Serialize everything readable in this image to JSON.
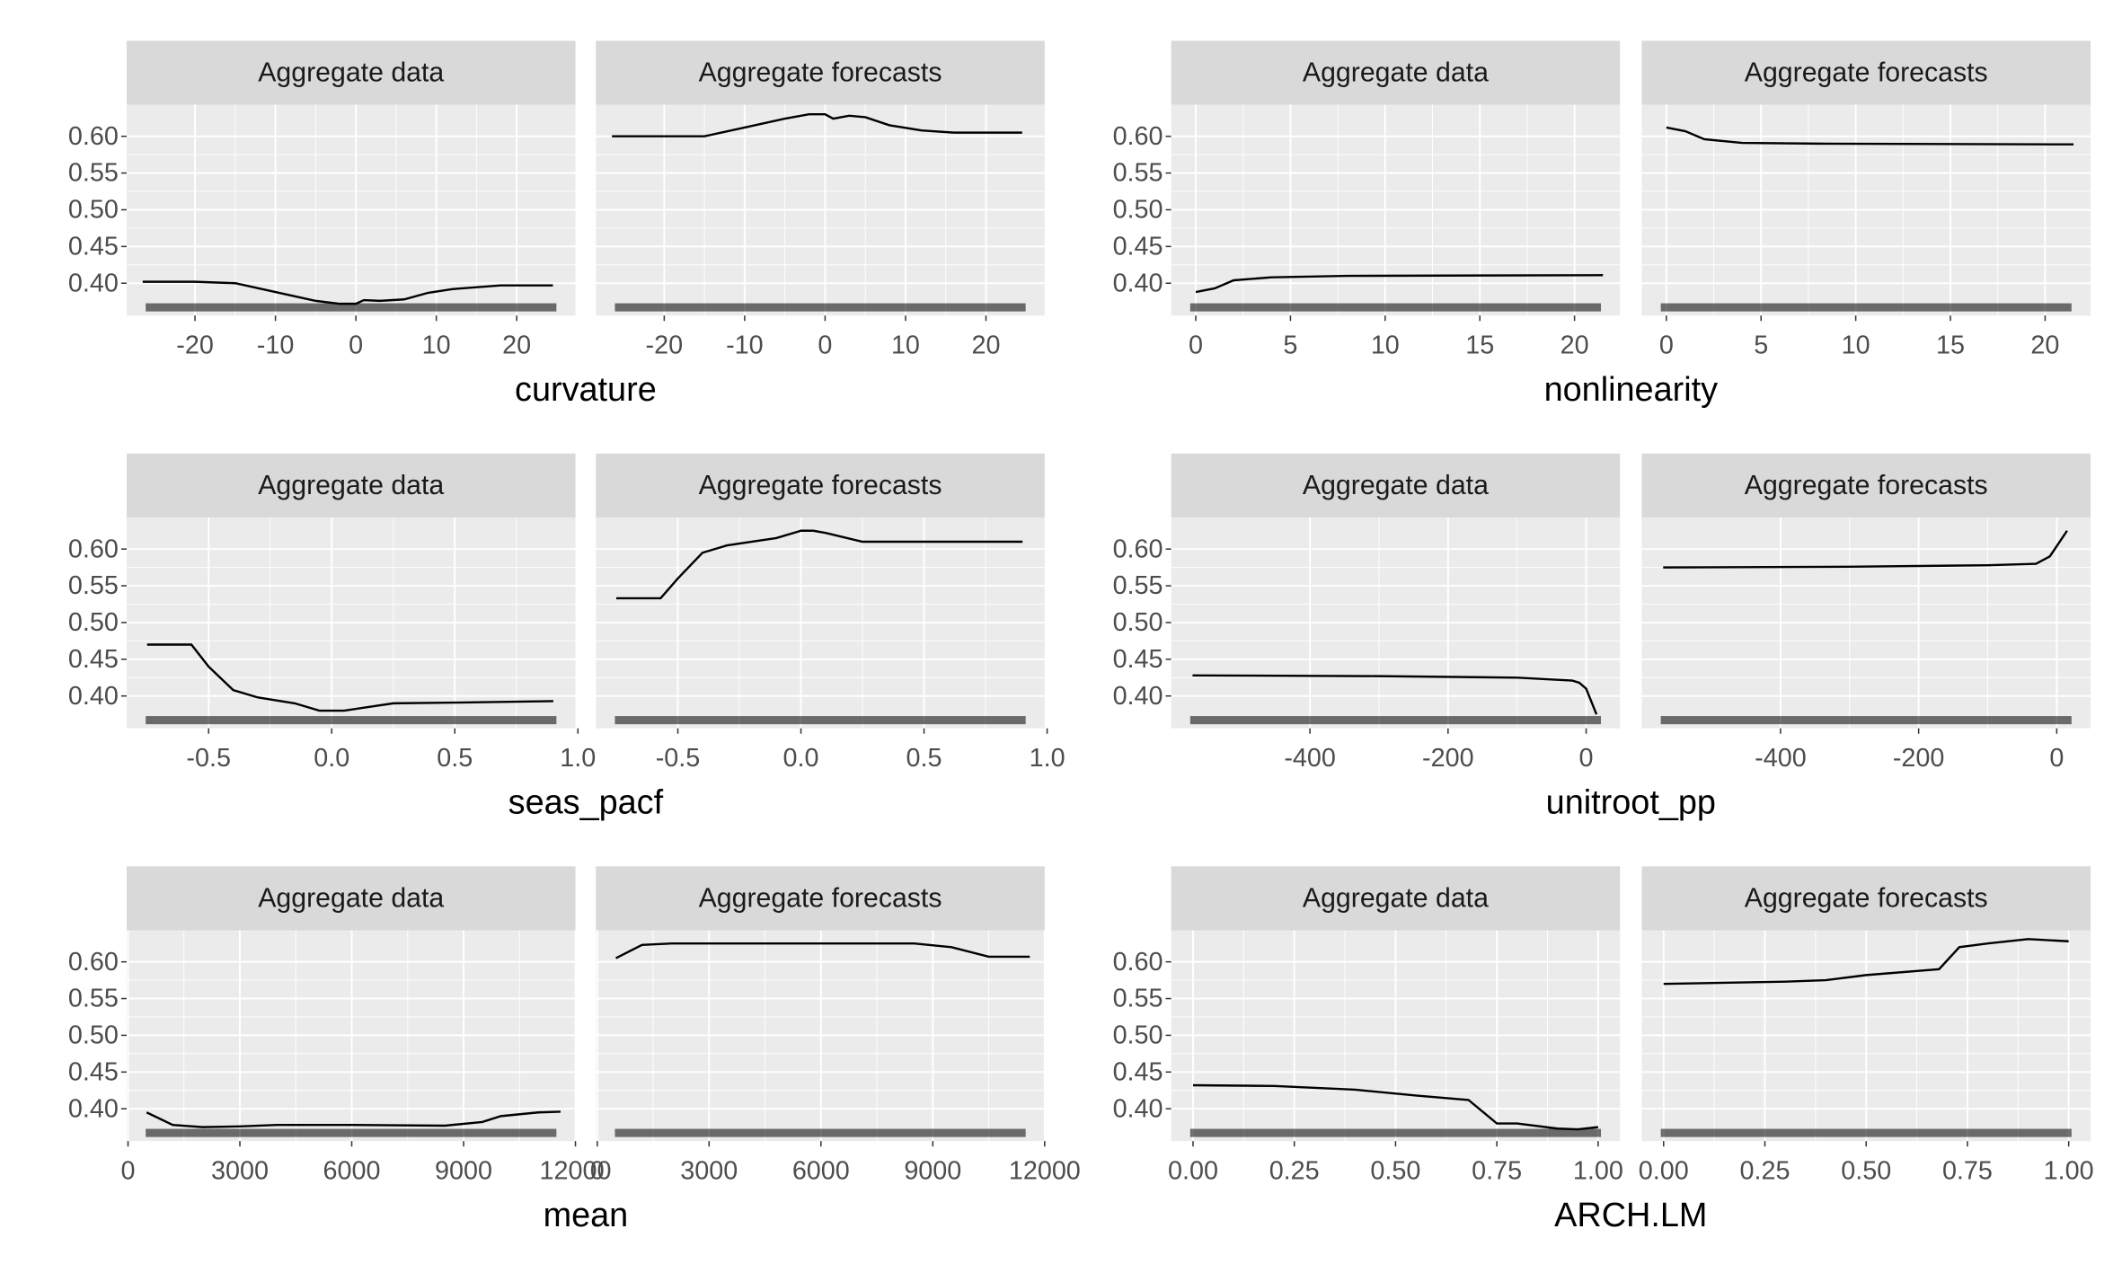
{
  "chart_data": [
    {
      "type": "line",
      "xlabel": "curvature",
      "color": "#000000",
      "grid": true,
      "xlim": [
        -28.5,
        27.3
      ],
      "xticks": [
        -20,
        -10,
        0,
        10,
        20
      ],
      "ylim": [
        0.356,
        0.643
      ],
      "yticks": [
        {
          "value": 0.4,
          "label": "0.40"
        },
        {
          "value": 0.45,
          "label": "0.45"
        },
        {
          "value": 0.5,
          "label": "0.50"
        },
        {
          "value": 0.55,
          "label": "0.55"
        },
        {
          "value": 0.6,
          "label": "0.60"
        }
      ],
      "panels": [
        {
          "title": "Aggregate data",
          "x": [
            -26.5,
            -20,
            -15,
            -10,
            -5,
            -2,
            0,
            1,
            3,
            6,
            9,
            12,
            18,
            24.5
          ],
          "values": [
            0.402,
            0.402,
            0.4,
            0.388,
            0.376,
            0.372,
            0.372,
            0.377,
            0.376,
            0.378,
            0.387,
            0.392,
            0.397,
            0.397
          ]
        },
        {
          "title": "Aggregate forecasts",
          "x": [
            -26.5,
            -15,
            -10,
            -5,
            -2,
            0,
            1,
            3,
            5,
            8,
            12,
            16,
            24.5
          ],
          "values": [
            0.6,
            0.6,
            0.612,
            0.624,
            0.63,
            0.63,
            0.624,
            0.628,
            0.626,
            0.615,
            0.608,
            0.605,
            0.605
          ]
        }
      ]
    },
    {
      "type": "line",
      "xlabel": "nonlinearity",
      "color": "#000000",
      "grid": true,
      "xlim": [
        -1.3,
        22.4
      ],
      "xticks": [
        0,
        5,
        10,
        15,
        20
      ],
      "ylim": [
        0.356,
        0.643
      ],
      "yticks": [
        {
          "value": 0.4,
          "label": "0.40"
        },
        {
          "value": 0.45,
          "label": "0.45"
        },
        {
          "value": 0.5,
          "label": "0.50"
        },
        {
          "value": 0.55,
          "label": "0.55"
        },
        {
          "value": 0.6,
          "label": "0.60"
        }
      ],
      "panels": [
        {
          "title": "Aggregate data",
          "x": [
            0,
            1,
            2,
            4,
            8,
            21.5
          ],
          "values": [
            0.388,
            0.393,
            0.404,
            0.408,
            0.41,
            0.411
          ]
        },
        {
          "title": "Aggregate forecasts",
          "x": [
            0,
            1,
            2,
            4,
            8,
            21.5
          ],
          "values": [
            0.612,
            0.607,
            0.596,
            0.591,
            0.59,
            0.589
          ]
        }
      ]
    },
    {
      "type": "line",
      "xlabel": "seas_pacf",
      "color": "#000000",
      "grid": true,
      "xlim": [
        -0.833,
        0.99
      ],
      "xticks": [
        -0.5,
        {
          "value": 0,
          "label": "0.0"
        },
        0.5,
        {
          "value": 1,
          "label": "1.0"
        }
      ],
      "ylim": [
        0.356,
        0.643
      ],
      "yticks": [
        {
          "value": 0.4,
          "label": "0.40"
        },
        {
          "value": 0.45,
          "label": "0.45"
        },
        {
          "value": 0.5,
          "label": "0.50"
        },
        {
          "value": 0.55,
          "label": "0.55"
        },
        {
          "value": 0.6,
          "label": "0.60"
        }
      ],
      "panels": [
        {
          "title": "Aggregate data",
          "x": [
            -0.75,
            -0.57,
            -0.5,
            -0.4,
            -0.3,
            -0.15,
            -0.05,
            0.05,
            0.15,
            0.25,
            0.5,
            0.9
          ],
          "values": [
            0.47,
            0.47,
            0.44,
            0.408,
            0.398,
            0.39,
            0.38,
            0.38,
            0.385,
            0.39,
            0.391,
            0.393
          ]
        },
        {
          "title": "Aggregate forecasts",
          "x": [
            -0.75,
            -0.57,
            -0.5,
            -0.4,
            -0.3,
            -0.1,
            0,
            0.05,
            0.1,
            0.25,
            0.5,
            0.9
          ],
          "values": [
            0.533,
            0.533,
            0.56,
            0.595,
            0.605,
            0.615,
            0.625,
            0.625,
            0.622,
            0.61,
            0.61,
            0.61
          ]
        }
      ]
    },
    {
      "type": "line",
      "xlabel": "unitroot_pp",
      "color": "#000000",
      "grid": true,
      "xlim": [
        -601,
        49
      ],
      "xticks": [
        -400,
        -200,
        0
      ],
      "ylim": [
        0.356,
        0.643
      ],
      "yticks": [
        {
          "value": 0.4,
          "label": "0.40"
        },
        {
          "value": 0.45,
          "label": "0.45"
        },
        {
          "value": 0.5,
          "label": "0.50"
        },
        {
          "value": 0.55,
          "label": "0.55"
        },
        {
          "value": 0.6,
          "label": "0.60"
        }
      ],
      "panels": [
        {
          "title": "Aggregate data",
          "x": [
            -570,
            -300,
            -100,
            -20,
            -10,
            0,
            15
          ],
          "values": [
            0.428,
            0.427,
            0.425,
            0.421,
            0.418,
            0.41,
            0.375
          ]
        },
        {
          "title": "Aggregate forecasts",
          "x": [
            -570,
            -300,
            -100,
            -30,
            -10,
            15
          ],
          "values": [
            0.575,
            0.576,
            0.578,
            0.58,
            0.59,
            0.625
          ]
        }
      ]
    },
    {
      "type": "line",
      "xlabel": "mean",
      "color": "#000000",
      "grid": true,
      "xlim": [
        -37,
        12000
      ],
      "xticks": [
        0,
        3000,
        6000,
        9000,
        12000
      ],
      "ylim": [
        0.356,
        0.643
      ],
      "yticks": [
        {
          "value": 0.4,
          "label": "0.40"
        },
        {
          "value": 0.45,
          "label": "0.45"
        },
        {
          "value": 0.5,
          "label": "0.50"
        },
        {
          "value": 0.55,
          "label": "0.55"
        },
        {
          "value": 0.6,
          "label": "0.60"
        }
      ],
      "panels": [
        {
          "title": "Aggregate data",
          "x": [
            500,
            1200,
            2000,
            3000,
            4000,
            6000,
            8500,
            9500,
            10000,
            11000,
            11600
          ],
          "values": [
            0.395,
            0.378,
            0.375,
            0.376,
            0.378,
            0.378,
            0.377,
            0.382,
            0.39,
            0.395,
            0.396
          ]
        },
        {
          "title": "Aggregate forecasts",
          "x": [
            500,
            1200,
            2000,
            6000,
            8500,
            9500,
            10500,
            11600
          ],
          "values": [
            0.605,
            0.623,
            0.625,
            0.625,
            0.625,
            0.62,
            0.607,
            0.607
          ]
        }
      ]
    },
    {
      "type": "line",
      "xlabel": "ARCH.LM",
      "color": "#000000",
      "grid": true,
      "xlim": [
        -0.054,
        1.054
      ],
      "xticks": [
        {
          "value": 0,
          "label": "0.00"
        },
        0.25,
        {
          "value": 0.5,
          "label": "0.50"
        },
        0.75,
        {
          "value": 1,
          "label": "1.00"
        }
      ],
      "ylim": [
        0.356,
        0.643
      ],
      "yticks": [
        {
          "value": 0.4,
          "label": "0.40"
        },
        {
          "value": 0.45,
          "label": "0.45"
        },
        {
          "value": 0.5,
          "label": "0.50"
        },
        {
          "value": 0.55,
          "label": "0.55"
        },
        {
          "value": 0.6,
          "label": "0.60"
        }
      ],
      "panels": [
        {
          "title": "Aggregate data",
          "x": [
            0,
            0.2,
            0.4,
            0.55,
            0.68,
            0.75,
            0.8,
            0.9,
            0.95,
            1.0
          ],
          "values": [
            0.432,
            0.431,
            0.426,
            0.418,
            0.412,
            0.38,
            0.38,
            0.373,
            0.372,
            0.375
          ]
        },
        {
          "title": "Aggregate forecasts",
          "x": [
            0,
            0.3,
            0.4,
            0.5,
            0.68,
            0.73,
            0.8,
            0.9,
            1.0
          ],
          "values": [
            0.57,
            0.573,
            0.575,
            0.582,
            0.59,
            0.62,
            0.625,
            0.631,
            0.628
          ]
        }
      ]
    }
  ]
}
